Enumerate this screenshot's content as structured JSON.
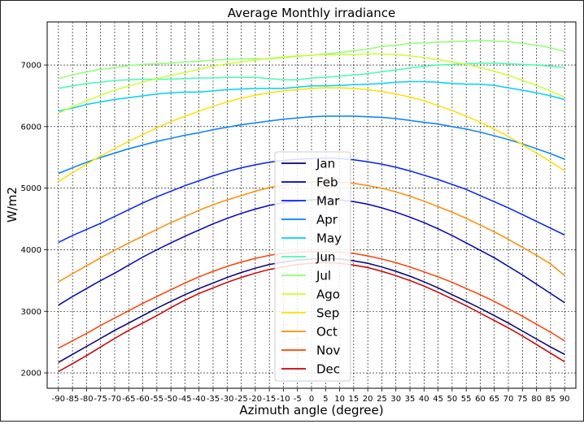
{
  "chart_data": {
    "type": "line",
    "title": "Average Monthly irradiance",
    "xlabel": "Azimuth angle (degree)",
    "ylabel": "W/m2",
    "x": [
      -90,
      -85,
      -80,
      -75,
      -70,
      -65,
      -60,
      -55,
      -50,
      -45,
      -40,
      -35,
      -30,
      -25,
      -20,
      -15,
      -10,
      -5,
      0,
      5,
      10,
      15,
      20,
      25,
      30,
      35,
      40,
      45,
      50,
      55,
      60,
      65,
      70,
      75,
      80,
      85,
      90
    ],
    "xlim": [
      -94,
      94
    ],
    "ylim": [
      1750,
      7700
    ],
    "yticks": [
      2000,
      3000,
      4000,
      5000,
      6000,
      7000
    ],
    "grid": true,
    "legend_position": "lower-center",
    "series": [
      {
        "name": "Jan",
        "color": "#000080",
        "values": [
          2170,
          2300,
          2430,
          2560,
          2690,
          2810,
          2930,
          3050,
          3160,
          3270,
          3370,
          3460,
          3550,
          3630,
          3700,
          3760,
          3800,
          3830,
          3850,
          3860,
          3850,
          3820,
          3780,
          3720,
          3650,
          3570,
          3480,
          3380,
          3270,
          3160,
          3050,
          2930,
          2810,
          2680,
          2550,
          2420,
          2300
        ]
      },
      {
        "name": "Feb",
        "color": "#0000bb",
        "values": [
          3100,
          3240,
          3370,
          3500,
          3620,
          3750,
          3880,
          4000,
          4110,
          4220,
          4320,
          4420,
          4510,
          4590,
          4660,
          4720,
          4760,
          4790,
          4810,
          4820,
          4810,
          4780,
          4740,
          4680,
          4610,
          4530,
          4440,
          4340,
          4230,
          4110,
          3990,
          3870,
          3730,
          3590,
          3440,
          3290,
          3140
        ]
      },
      {
        "name": "Mar",
        "color": "#0020ff",
        "values": [
          4120,
          4230,
          4330,
          4430,
          4540,
          4650,
          4760,
          4860,
          4950,
          5040,
          5120,
          5200,
          5270,
          5330,
          5380,
          5420,
          5450,
          5470,
          5480,
          5490,
          5480,
          5460,
          5430,
          5390,
          5340,
          5280,
          5210,
          5140,
          5060,
          4980,
          4880,
          4780,
          4680,
          4570,
          4460,
          4350,
          4240
        ]
      },
      {
        "name": "Apr",
        "color": "#0080ff",
        "values": [
          5240,
          5330,
          5420,
          5500,
          5570,
          5640,
          5700,
          5760,
          5810,
          5860,
          5900,
          5950,
          5990,
          6030,
          6060,
          6090,
          6120,
          6140,
          6160,
          6170,
          6170,
          6170,
          6160,
          6150,
          6130,
          6100,
          6070,
          6040,
          6000,
          5960,
          5910,
          5850,
          5790,
          5720,
          5640,
          5560,
          5470
        ]
      },
      {
        "name": "May",
        "color": "#00d0ff",
        "values": [
          6250,
          6300,
          6360,
          6400,
          6440,
          6470,
          6500,
          6530,
          6550,
          6560,
          6560,
          6580,
          6600,
          6610,
          6620,
          6620,
          6620,
          6640,
          6660,
          6660,
          6670,
          6680,
          6690,
          6700,
          6720,
          6730,
          6730,
          6720,
          6700,
          6690,
          6690,
          6670,
          6630,
          6590,
          6550,
          6500,
          6440
        ]
      },
      {
        "name": "Jun",
        "color": "#40ffb0",
        "values": [
          6620,
          6660,
          6700,
          6720,
          6750,
          6760,
          6770,
          6770,
          6770,
          6780,
          6790,
          6790,
          6800,
          6800,
          6800,
          6780,
          6760,
          6760,
          6790,
          6800,
          6820,
          6840,
          6860,
          6890,
          6920,
          6950,
          6980,
          7000,
          7010,
          7020,
          7030,
          7030,
          7020,
          7010,
          7000,
          6980,
          6960
        ]
      },
      {
        "name": "Jul",
        "color": "#90ff70",
        "values": [
          6780,
          6840,
          6890,
          6930,
          6960,
          6990,
          7010,
          7020,
          7030,
          7050,
          7060,
          7080,
          7090,
          7100,
          7100,
          7100,
          7120,
          7140,
          7160,
          7180,
          7200,
          7230,
          7260,
          7300,
          7320,
          7350,
          7360,
          7370,
          7380,
          7390,
          7400,
          7390,
          7380,
          7350,
          7320,
          7280,
          7220
        ]
      },
      {
        "name": "Ago",
        "color": "#ccff30",
        "values": [
          6220,
          6320,
          6420,
          6510,
          6590,
          6660,
          6720,
          6780,
          6830,
          6880,
          6930,
          6980,
          7020,
          7050,
          7080,
          7110,
          7130,
          7150,
          7160,
          7170,
          7170,
          7170,
          7180,
          7180,
          7170,
          7150,
          7120,
          7090,
          7050,
          7010,
          6960,
          6900,
          6830,
          6750,
          6670,
          6580,
          6480
        ]
      },
      {
        "name": "Sep",
        "color": "#ffe000",
        "values": [
          5110,
          5250,
          5390,
          5520,
          5640,
          5760,
          5870,
          5980,
          6080,
          6170,
          6250,
          6330,
          6400,
          6460,
          6510,
          6550,
          6580,
          6600,
          6620,
          6630,
          6630,
          6620,
          6600,
          6570,
          6530,
          6480,
          6420,
          6340,
          6260,
          6170,
          6070,
          5960,
          5840,
          5710,
          5570,
          5430,
          5280
        ]
      },
      {
        "name": "Oct",
        "color": "#ff8c00",
        "values": [
          3480,
          3610,
          3740,
          3870,
          3990,
          4110,
          4220,
          4330,
          4440,
          4540,
          4640,
          4730,
          4810,
          4880,
          4950,
          5010,
          5050,
          5080,
          5100,
          5110,
          5100,
          5080,
          5040,
          5000,
          4940,
          4870,
          4790,
          4700,
          4610,
          4510,
          4400,
          4290,
          4170,
          4040,
          3910,
          3770,
          3580
        ]
      },
      {
        "name": "Nov",
        "color": "#ff4000",
        "values": [
          2400,
          2520,
          2640,
          2770,
          2890,
          3010,
          3130,
          3240,
          3350,
          3460,
          3560,
          3650,
          3730,
          3800,
          3860,
          3910,
          3940,
          3960,
          3970,
          3970,
          3960,
          3940,
          3900,
          3850,
          3790,
          3720,
          3640,
          3560,
          3470,
          3370,
          3270,
          3160,
          3040,
          2920,
          2790,
          2660,
          2520
        ]
      },
      {
        "name": "Dec",
        "color": "#cc0000",
        "values": [
          2020,
          2150,
          2280,
          2420,
          2560,
          2690,
          2810,
          2930,
          3060,
          3180,
          3290,
          3380,
          3470,
          3550,
          3620,
          3680,
          3720,
          3760,
          3780,
          3790,
          3780,
          3750,
          3710,
          3650,
          3580,
          3500,
          3410,
          3310,
          3200,
          3090,
          2970,
          2850,
          2730,
          2600,
          2460,
          2320,
          2180
        ]
      }
    ]
  }
}
